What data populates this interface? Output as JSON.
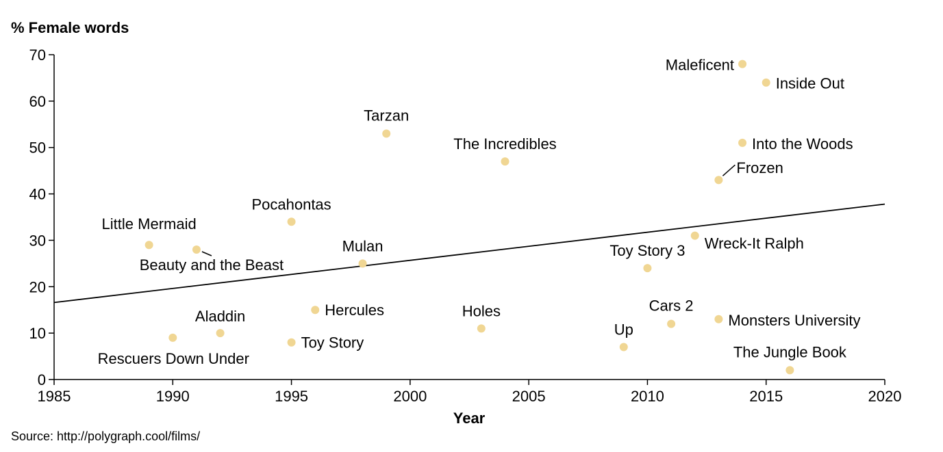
{
  "chart_data": {
    "type": "scatter",
    "ylabel": "% Female words",
    "xlabel": "Year",
    "source": "Source: http://polygraph.cool/films/",
    "xlim": [
      1985,
      2020
    ],
    "ylim": [
      0,
      70
    ],
    "x_ticks": [
      1985,
      1990,
      1995,
      2000,
      2005,
      2010,
      2015,
      2020
    ],
    "y_ticks": [
      0,
      10,
      20,
      30,
      40,
      50,
      60,
      70
    ],
    "point_color": "#f0d693",
    "grid": false,
    "trendline": {
      "x": [
        1985,
        2020
      ],
      "y": [
        16.6,
        37.8
      ]
    },
    "points": [
      {
        "label": "Little Mermaid",
        "x": 1989,
        "y": 29
      },
      {
        "label": "Beauty and the Beast",
        "x": 1991,
        "y": 28
      },
      {
        "label": "Rescuers Down Under",
        "x": 1990,
        "y": 9
      },
      {
        "label": "Aladdin",
        "x": 1992,
        "y": 10
      },
      {
        "label": "Pocahontas",
        "x": 1995,
        "y": 34
      },
      {
        "label": "Toy Story",
        "x": 1995,
        "y": 8
      },
      {
        "label": "Hercules",
        "x": 1996,
        "y": 15
      },
      {
        "label": "Mulan",
        "x": 1998,
        "y": 25
      },
      {
        "label": "Tarzan",
        "x": 1999,
        "y": 53
      },
      {
        "label": "Holes",
        "x": 2003,
        "y": 11
      },
      {
        "label": "The Incredibles",
        "x": 2004,
        "y": 47
      },
      {
        "label": "Up",
        "x": 2009,
        "y": 7
      },
      {
        "label": "Toy Story 3",
        "x": 2010,
        "y": 24
      },
      {
        "label": "Cars 2",
        "x": 2011,
        "y": 12
      },
      {
        "label": "Wreck-It Ralph",
        "x": 2012,
        "y": 31
      },
      {
        "label": "Monsters University",
        "x": 2013,
        "y": 13
      },
      {
        "label": "Frozen",
        "x": 2013,
        "y": 43
      },
      {
        "label": "Maleficent",
        "x": 2014,
        "y": 68
      },
      {
        "label": "Into the Woods",
        "x": 2014,
        "y": 51
      },
      {
        "label": "Inside Out",
        "x": 2015,
        "y": 64
      },
      {
        "label": "The Jungle Book",
        "x": 2016,
        "y": 2
      }
    ]
  }
}
